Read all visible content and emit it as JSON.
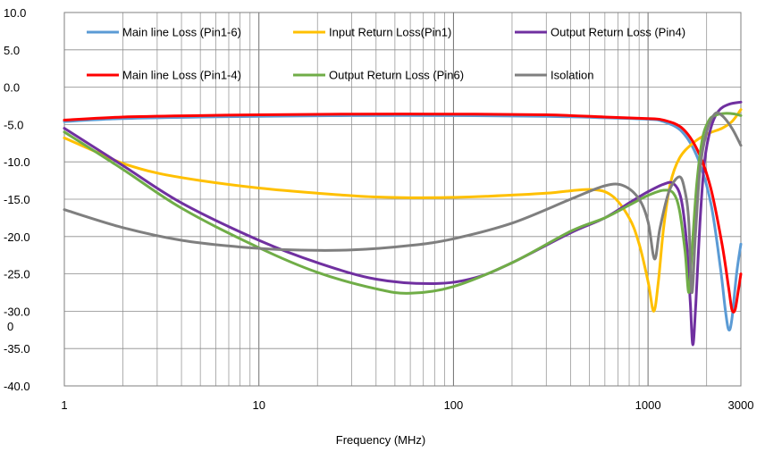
{
  "chart_data": {
    "type": "line",
    "title": "",
    "xlabel": "Frequency (MHz)",
    "ylabel": "",
    "x_scale": "log",
    "xlim": [
      1,
      3000
    ],
    "ylim": [
      -40,
      10
    ],
    "grid": true,
    "legend_position": "top (inside plot)",
    "x_tick_labels": [
      "1",
      "10",
      "100",
      "1000",
      "3000"
    ],
    "y_tick_labels": [
      "10.0",
      "5.0",
      "0.0",
      "-5.0",
      "-10.0",
      "-15.0",
      "-20.0",
      "-25.0",
      "-30.0",
      "-35.0",
      "-40.0"
    ],
    "y_stray_label": "0",
    "series": [
      {
        "name": "Main line Loss (Pin1-6)",
        "color": "#5B9BD5",
        "points": [
          [
            1,
            -4.6
          ],
          [
            2,
            -4.2
          ],
          [
            5,
            -4.0
          ],
          [
            10,
            -3.9
          ],
          [
            30,
            -3.8
          ],
          [
            100,
            -3.8
          ],
          [
            300,
            -3.9
          ],
          [
            600,
            -4.1
          ],
          [
            1000,
            -4.3
          ],
          [
            1200,
            -4.6
          ],
          [
            1500,
            -6.0
          ],
          [
            1800,
            -9.5
          ],
          [
            2100,
            -15.5
          ],
          [
            2350,
            -24
          ],
          [
            2500,
            -30
          ],
          [
            2600,
            -32.5
          ],
          [
            2700,
            -31
          ],
          [
            2850,
            -25
          ],
          [
            3000,
            -21
          ]
        ]
      },
      {
        "name": "Input   Return Loss(Pin1)",
        "color": "#FFC000",
        "points": [
          [
            1,
            -6.8
          ],
          [
            1.5,
            -8.8
          ],
          [
            2,
            -10.2
          ],
          [
            3,
            -11.5
          ],
          [
            5,
            -12.5
          ],
          [
            10,
            -13.5
          ],
          [
            20,
            -14.2
          ],
          [
            40,
            -14.7
          ],
          [
            80,
            -14.8
          ],
          [
            150,
            -14.6
          ],
          [
            300,
            -14.2
          ],
          [
            500,
            -13.7
          ],
          [
            650,
            -14.5
          ],
          [
            800,
            -17.5
          ],
          [
            900,
            -21
          ],
          [
            1000,
            -26
          ],
          [
            1070,
            -30
          ],
          [
            1130,
            -26
          ],
          [
            1200,
            -19
          ],
          [
            1300,
            -13
          ],
          [
            1450,
            -9.5
          ],
          [
            1700,
            -7.5
          ],
          [
            2000,
            -6.3
          ],
          [
            2400,
            -5.5
          ],
          [
            2700,
            -4.6
          ],
          [
            3000,
            -3.0
          ]
        ]
      },
      {
        "name": "Output Return Loss (Pin4)",
        "color": "#7030A0",
        "points": [
          [
            1,
            -5.5
          ],
          [
            2,
            -10.5
          ],
          [
            4,
            -15.5
          ],
          [
            10,
            -20.5
          ],
          [
            20,
            -23.5
          ],
          [
            40,
            -25.7
          ],
          [
            80,
            -26.3
          ],
          [
            130,
            -25.5
          ],
          [
            200,
            -23.5
          ],
          [
            400,
            -19.5
          ],
          [
            600,
            -17.5
          ],
          [
            800,
            -15.5
          ],
          [
            1000,
            -14
          ],
          [
            1200,
            -13
          ],
          [
            1350,
            -12.9
          ],
          [
            1480,
            -15
          ],
          [
            1580,
            -21
          ],
          [
            1650,
            -29
          ],
          [
            1700,
            -34.5
          ],
          [
            1760,
            -29
          ],
          [
            1850,
            -18
          ],
          [
            1950,
            -10
          ],
          [
            2100,
            -5.5
          ],
          [
            2300,
            -3.2
          ],
          [
            2600,
            -2.3
          ],
          [
            3000,
            -2.0
          ]
        ]
      },
      {
        "name": "Main line Loss (Pin1-4)",
        "color": "#FF0000",
        "points": [
          [
            1,
            -4.4
          ],
          [
            2,
            -4.0
          ],
          [
            5,
            -3.8
          ],
          [
            10,
            -3.7
          ],
          [
            30,
            -3.6
          ],
          [
            100,
            -3.6
          ],
          [
            300,
            -3.7
          ],
          [
            600,
            -4.0
          ],
          [
            1000,
            -4.2
          ],
          [
            1200,
            -4.4
          ],
          [
            1500,
            -5.5
          ],
          [
            1800,
            -8.5
          ],
          [
            2100,
            -13.5
          ],
          [
            2400,
            -21
          ],
          [
            2600,
            -27
          ],
          [
            2700,
            -29.8
          ],
          [
            2800,
            -29.8
          ],
          [
            2900,
            -27.5
          ],
          [
            3000,
            -25
          ]
        ]
      },
      {
        "name": "Output Return Loss (Pin6)",
        "color": "#70AD47",
        "points": [
          [
            1,
            -6.0
          ],
          [
            2,
            -11.0
          ],
          [
            4,
            -16.2
          ],
          [
            10,
            -21.5
          ],
          [
            20,
            -24.8
          ],
          [
            40,
            -27.0
          ],
          [
            60,
            -27.6
          ],
          [
            100,
            -26.7
          ],
          [
            200,
            -23.5
          ],
          [
            400,
            -19.3
          ],
          [
            600,
            -17.5
          ],
          [
            800,
            -15.8
          ],
          [
            1000,
            -14.5
          ],
          [
            1200,
            -13.8
          ],
          [
            1350,
            -14.2
          ],
          [
            1450,
            -16.5
          ],
          [
            1550,
            -22
          ],
          [
            1620,
            -27.5
          ],
          [
            1680,
            -22
          ],
          [
            1780,
            -13
          ],
          [
            1900,
            -7
          ],
          [
            2050,
            -4.5
          ],
          [
            2200,
            -3.8
          ],
          [
            2500,
            -3.5
          ],
          [
            2800,
            -3.6
          ],
          [
            3000,
            -3.8
          ]
        ]
      },
      {
        "name": "Isolation",
        "color": "#7F7F7F",
        "points": [
          [
            1,
            -16.4
          ],
          [
            2,
            -18.8
          ],
          [
            4,
            -20.5
          ],
          [
            8,
            -21.4
          ],
          [
            15,
            -21.8
          ],
          [
            30,
            -21.8
          ],
          [
            60,
            -21.2
          ],
          [
            100,
            -20.3
          ],
          [
            200,
            -18.2
          ],
          [
            400,
            -15
          ],
          [
            600,
            -13.2
          ],
          [
            750,
            -13.2
          ],
          [
            900,
            -15
          ],
          [
            1000,
            -18
          ],
          [
            1080,
            -23
          ],
          [
            1150,
            -19
          ],
          [
            1280,
            -14
          ],
          [
            1450,
            -12
          ],
          [
            1550,
            -14
          ],
          [
            1620,
            -18
          ],
          [
            1680,
            -27.5
          ],
          [
            1750,
            -20
          ],
          [
            1850,
            -11
          ],
          [
            2000,
            -6
          ],
          [
            2200,
            -3.6
          ],
          [
            2400,
            -3.8
          ],
          [
            2700,
            -5.5
          ],
          [
            3000,
            -7.8
          ]
        ]
      }
    ],
    "legend": [
      {
        "name": "Main line Loss (Pin1-6)",
        "color": "#5B9BD5",
        "row": 0,
        "col": 0
      },
      {
        "name": "Input   Return Loss(Pin1)",
        "color": "#FFC000",
        "row": 0,
        "col": 1
      },
      {
        "name": "Output Return Loss (Pin4)",
        "color": "#7030A0",
        "row": 0,
        "col": 2
      },
      {
        "name": "Main line Loss (Pin1-4)",
        "color": "#FF0000",
        "row": 1,
        "col": 0
      },
      {
        "name": "Output Return Loss (Pin6)",
        "color": "#70AD47",
        "row": 1,
        "col": 1
      },
      {
        "name": "Isolation",
        "color": "#7F7F7F",
        "row": 1,
        "col": 2
      }
    ]
  }
}
